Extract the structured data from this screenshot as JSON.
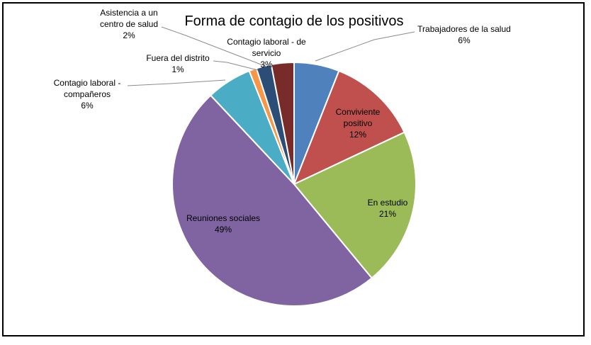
{
  "chart_data": {
    "type": "pie",
    "title": "Forma de contagio de los positivos",
    "slices": [
      {
        "name": "Trabajadores de la salud",
        "value": 6,
        "label": "6%",
        "color": "#4f81bd"
      },
      {
        "name": "Conviviente positivo",
        "value": 12,
        "label": "12%",
        "color": "#c0504d"
      },
      {
        "name": "En estudio",
        "value": 21,
        "label": "21%",
        "color": "#9bbb59"
      },
      {
        "name": "Reuniones sociales",
        "value": 49,
        "label": "49%",
        "color": "#8064a2"
      },
      {
        "name": "Contagio laboral - compañeros",
        "value": 6,
        "label": "6%",
        "color": "#4bacc6"
      },
      {
        "name": "Fuera del distrito",
        "value": 1,
        "label": "1%",
        "color": "#f79646"
      },
      {
        "name": "Asistencia a un centro de salud",
        "value": 2,
        "label": "2%",
        "color": "#2c4d75"
      },
      {
        "name": "Contagio laboral - de servicio",
        "value": 3,
        "label": "3%",
        "color": "#772c2a"
      }
    ],
    "legend": "none"
  }
}
